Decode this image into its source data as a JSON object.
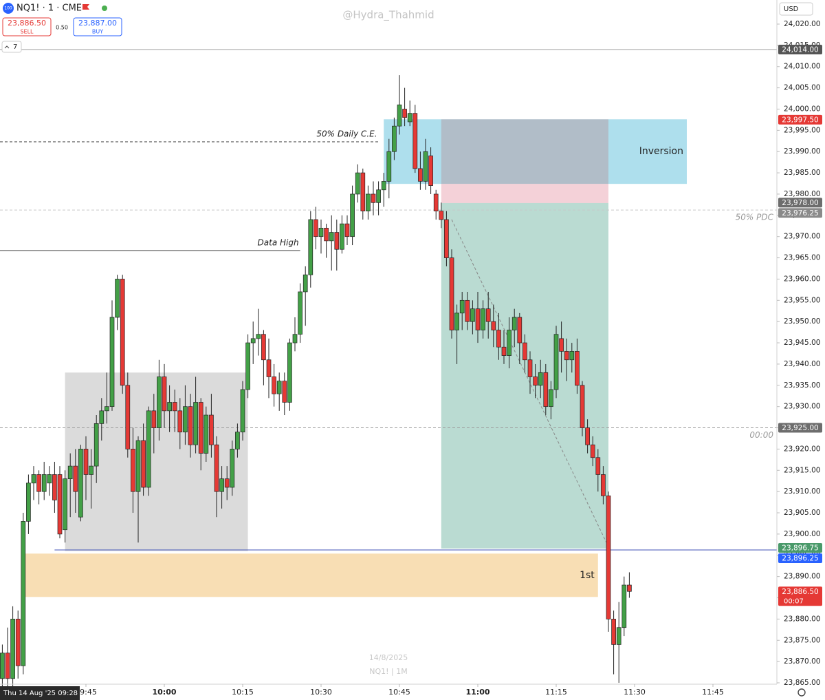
{
  "header": {
    "icon": "100",
    "symbol": "NQ1! · 1 · CME",
    "sell_price": "23,886.50",
    "sell_label": "SELL",
    "spread": "0.50",
    "buy_price": "23,887.00",
    "buy_label": "BUY",
    "interval_count": "7",
    "watermark": "@Hydra_Thahmid",
    "currency": "USD"
  },
  "chart_data": {
    "type": "candlestick",
    "center_date": "14/8/2025",
    "center_symbol": "NQ1! | 1M",
    "crosshair_label": "Thu 14 Aug '25  09:28",
    "up_color": "#43a047",
    "down_color": "#e53935",
    "x": [
      "09:29",
      "09:30",
      "09:31",
      "09:32",
      "09:33",
      "09:34",
      "09:35",
      "09:36",
      "09:37",
      "09:38",
      "09:39",
      "09:40",
      "09:41",
      "09:42",
      "09:43",
      "09:44",
      "09:45",
      "09:46",
      "09:47",
      "09:48",
      "09:49",
      "09:50",
      "09:51",
      "09:52",
      "09:53",
      "09:54",
      "09:55",
      "09:56",
      "09:57",
      "09:58",
      "09:59",
      "10:00",
      "10:01",
      "10:02",
      "10:03",
      "10:04",
      "10:05",
      "10:06",
      "10:07",
      "10:08",
      "10:09",
      "10:10",
      "10:11",
      "10:12",
      "10:13",
      "10:14",
      "10:15",
      "10:16",
      "10:17",
      "10:18",
      "10:19",
      "10:20",
      "10:21",
      "10:22",
      "10:23",
      "10:24",
      "10:25",
      "10:26",
      "10:27",
      "10:28",
      "10:29",
      "10:30",
      "10:31",
      "10:32",
      "10:33",
      "10:34",
      "10:35",
      "10:36",
      "10:37",
      "10:38",
      "10:39",
      "10:40",
      "10:41",
      "10:42",
      "10:43",
      "10:44",
      "10:45",
      "10:46",
      "10:47",
      "10:48",
      "10:49",
      "10:50",
      "10:51",
      "10:52",
      "10:53",
      "10:54",
      "10:55",
      "10:56",
      "10:57",
      "10:58",
      "10:59",
      "11:00",
      "11:01",
      "11:02",
      "11:03",
      "11:04",
      "11:05",
      "11:06",
      "11:07",
      "11:08",
      "11:09",
      "11:10",
      "11:11",
      "11:12",
      "11:13",
      "11:14",
      "11:15",
      "11:16",
      "11:17",
      "11:18",
      "11:19",
      "11:20",
      "11:21",
      "11:22",
      "11:23",
      "11:24",
      "11:25",
      "11:26",
      "11:27",
      "11:28",
      "11:29"
    ],
    "open": [
      23866,
      23872,
      23866,
      23880,
      23869,
      23903,
      23912,
      23914,
      23910,
      23912,
      23914,
      23914,
      23901,
      23913,
      23916,
      23904,
      23920,
      23914,
      23916,
      23926,
      23929,
      23930,
      23951,
      23960,
      23935,
      23920,
      23910,
      23922,
      23911,
      23929,
      23925,
      23937,
      23929,
      23931,
      23929,
      23924,
      23930,
      23921,
      23931,
      23919,
      23928,
      23921,
      23910,
      23913,
      23911,
      23920,
      23924,
      23934,
      23945,
      23946,
      23947,
      23941,
      23937,
      23933,
      23936,
      23931,
      23945,
      23947,
      23957,
      23961,
      23974,
      23970,
      23972,
      23969,
      23971,
      23967,
      23973,
      23970,
      23980,
      23985,
      23976,
      23980,
      23978,
      23981,
      23983,
      23990,
      23996,
      24000,
      23997,
      23999,
      23986,
      23983,
      23989,
      23980,
      23976,
      23974,
      23965,
      23948,
      23952,
      23955,
      23950,
      23953,
      23948,
      23953,
      23950,
      23948,
      23944,
      23942,
      23948,
      23951,
      23945,
      23941,
      23937,
      23935,
      23938,
      23930,
      23934,
      23946,
      23943,
      23941,
      23943,
      23935,
      23925,
      23921,
      23918,
      23914,
      23909,
      23880,
      23874,
      23878,
      23888
    ],
    "high": [
      23874,
      23878,
      23883,
      23882,
      23905,
      23914,
      23916,
      23915,
      23917,
      23916,
      23917,
      23916,
      23915,
      23919,
      23920,
      23921,
      23923,
      23920,
      23928,
      23932,
      23938,
      23955,
      23961,
      23961,
      23938,
      23925,
      23923,
      23926,
      23930,
      23933,
      23941,
      23940,
      23935,
      23934,
      23932,
      23935,
      23933,
      23937,
      23932,
      23930,
      23933,
      23923,
      23916,
      23916,
      23922,
      23926,
      23936,
      23947,
      23950,
      23953,
      23948,
      23946,
      23940,
      23938,
      23938,
      23946,
      23951,
      23959,
      23963,
      23976,
      23977,
      23974,
      23973,
      23975,
      23974,
      23975,
      23975,
      23982,
      23987,
      23986,
      23982,
      23983,
      23983,
      23985,
      23993,
      23998,
      24008,
      24005,
      24002,
      24001,
      23990,
      23993,
      23991,
      23981,
      23978,
      23976,
      23967,
      23954,
      23957,
      23957,
      23955,
      23957,
      23955,
      23957,
      23954,
      23952,
      23948,
      23951,
      23953,
      23952,
      23947,
      23943,
      23940,
      23941,
      23940,
      23936,
      23949,
      23950,
      23946,
      23945,
      23946,
      23936,
      23927,
      23923,
      23920,
      23916,
      23910,
      23882,
      23884,
      23890,
      23891
    ],
    "low": [
      23863,
      23862,
      23864,
      23866,
      23867,
      23900,
      23908,
      23907,
      23908,
      23909,
      23905,
      23899,
      23898,
      23904,
      23905,
      23903,
      23908,
      23906,
      23912,
      23922,
      23926,
      23929,
      23948,
      23933,
      23918,
      23905,
      23898,
      23909,
      23909,
      23919,
      23922,
      23925,
      23924,
      23924,
      23920,
      23921,
      23918,
      23919,
      23915,
      23917,
      23918,
      23904,
      23906,
      23908,
      23909,
      23918,
      23922,
      23932,
      23940,
      23942,
      23935,
      23932,
      23930,
      23929,
      23928,
      23929,
      23943,
      23945,
      23949,
      23958,
      23967,
      23966,
      23965,
      23962,
      23962,
      23966,
      23968,
      23968,
      23978,
      23974,
      23974,
      23975,
      23975,
      23977,
      23979,
      23988,
      23994,
      23996,
      23996,
      23985,
      23981,
      23981,
      23980,
      23974,
      23972,
      23963,
      23946,
      23940,
      23948,
      23948,
      23947,
      23945,
      23946,
      23946,
      23944,
      23941,
      23940,
      23939,
      23944,
      23940,
      23938,
      23933,
      23932,
      23932,
      23928,
      23927,
      23932,
      23938,
      23936,
      23938,
      23933,
      23923,
      23919,
      23916,
      23910,
      23907,
      23877,
      23867,
      23865,
      23876,
      23885
    ],
    "close": [
      23872,
      23866,
      23880,
      23869,
      23903,
      23912,
      23914,
      23910,
      23914,
      23914,
      23908,
      23900,
      23913,
      23916,
      23910,
      23920,
      23914,
      23916,
      23926,
      23929,
      23930,
      23951,
      23960,
      23935,
      23920,
      23910,
      23922,
      23911,
      23929,
      23925,
      23937,
      23929,
      23931,
      23929,
      23924,
      23930,
      23921,
      23931,
      23919,
      23928,
      23921,
      23910,
      23913,
      23911,
      23920,
      23924,
      23934,
      23945,
      23946,
      23947,
      23941,
      23937,
      23933,
      23936,
      23931,
      23945,
      23947,
      23957,
      23961,
      23974,
      23970,
      23972,
      23969,
      23971,
      23967,
      23973,
      23970,
      23980,
      23985,
      23976,
      23980,
      23978,
      23981,
      23983,
      23990,
      23996,
      24001,
      23998,
      23999,
      23986,
      23983,
      23990,
      23982,
      23976,
      23974,
      23965,
      23948,
      23952,
      23955,
      23950,
      23953,
      23948,
      23953,
      23950,
      23948,
      23944,
      23942,
      23948,
      23951,
      23945,
      23941,
      23937,
      23935,
      23938,
      23930,
      23934,
      23947,
      23943,
      23941,
      23943,
      23935,
      23925,
      23921,
      23918,
      23914,
      23909,
      23880,
      23874,
      23878,
      23888,
      23886.5
    ],
    "ylim": [
      23863.5,
      24025.7
    ],
    "yticks": [
      {
        "value": 24020,
        "label": "24,020.00"
      },
      {
        "value": 24015,
        "label": "24,015.00"
      },
      {
        "value": 24010,
        "label": "24,010.00"
      },
      {
        "value": 24005,
        "label": "24,005.00"
      },
      {
        "value": 24000,
        "label": "24,000.00"
      },
      {
        "value": 23995,
        "label": "23,995.00"
      },
      {
        "value": 23990,
        "label": "23,990.00"
      },
      {
        "value": 23985,
        "label": "23,985.00"
      },
      {
        "value": 23980,
        "label": "23,980.00"
      },
      {
        "value": 23975,
        "label": "23,975.00"
      },
      {
        "value": 23970,
        "label": "23,970.00"
      },
      {
        "value": 23965,
        "label": "23,965.00"
      },
      {
        "value": 23960,
        "label": "23,960.00"
      },
      {
        "value": 23955,
        "label": "23,955.00"
      },
      {
        "value": 23950,
        "label": "23,950.00"
      },
      {
        "value": 23945,
        "label": "23,945.00"
      },
      {
        "value": 23940,
        "label": "23,940.00"
      },
      {
        "value": 23935,
        "label": "23,935.00"
      },
      {
        "value": 23930,
        "label": "23,930.00"
      },
      {
        "value": 23925,
        "label": "23,925.00"
      },
      {
        "value": 23920,
        "label": "23,920.00"
      },
      {
        "value": 23915,
        "label": "23,915.00"
      },
      {
        "value": 23910,
        "label": "23,910.00"
      },
      {
        "value": 23905,
        "label": "23,905.00"
      },
      {
        "value": 23900,
        "label": "23,900.00"
      },
      {
        "value": 23895,
        "label": "23,895.00"
      },
      {
        "value": 23890,
        "label": "23,890.00"
      },
      {
        "value": 23885,
        "label": "23,885.00"
      },
      {
        "value": 23880,
        "label": "23,880.00"
      },
      {
        "value": 23875,
        "label": "23,875.00"
      },
      {
        "value": 23870,
        "label": "23,870.00"
      },
      {
        "value": 23865,
        "label": "23,865.00"
      }
    ],
    "xticks": [
      "09:45",
      "10:00",
      "10:15",
      "10:30",
      "10:45",
      "11:00",
      "11:15",
      "11:30",
      "11:45"
    ],
    "bold_xticks": [
      "10:00",
      "11:00"
    ],
    "zones": [
      {
        "start": "09:41",
        "end": "10:16",
        "top": 23938,
        "bottom": 23896,
        "color": "rgba(200,200,200,0.65)"
      },
      {
        "start": "09:33",
        "end": "11:23",
        "top": 23895.4,
        "bottom": 23885.2,
        "color": "rgba(245,205,140,0.65)",
        "text": "1st"
      },
      {
        "start": "10:42",
        "end": "11:40",
        "top": 23997.6,
        "bottom": 23982.4,
        "color": "rgba(140,210,230,0.7)",
        "text": "Inversion"
      },
      {
        "start": "10:53",
        "end": "11:25",
        "top": 23997.6,
        "bottom": 23982.4,
        "color": "rgba(180,160,170,0.55)"
      },
      {
        "start": "10:53",
        "end": "11:25",
        "top": 23982.4,
        "bottom": 23977.9,
        "color": "rgba(240,190,200,0.7)"
      },
      {
        "start": "10:53",
        "end": "11:25",
        "top": 23977.9,
        "bottom": 23896.6,
        "color": "rgba(140,195,180,0.6)"
      }
    ],
    "trend_line": {
      "x": [
        "10:55",
        "11:25"
      ],
      "y": [
        23974,
        23897
      ],
      "color": "#888888"
    },
    "levels": [
      {
        "value": 24014,
        "color": "#9e9e9e"
      },
      {
        "value": 23992.3,
        "color": "#333333",
        "dashed": true,
        "end": "10:41",
        "text": "50% Daily C.E."
      },
      {
        "value": 23966.7,
        "color": "#333333",
        "end": "10:26",
        "text": "Data High"
      },
      {
        "value": 23976.25,
        "color": "#c8c8c8",
        "dashed": true,
        "text": "50% PDC"
      },
      {
        "value": 23925,
        "color": "#9e9e9e",
        "dashed": true,
        "text": "00:00"
      },
      {
        "value": 23896.25,
        "color": "#3f51b5",
        "start": "09:39"
      }
    ],
    "price_badges": [
      {
        "value": 24014,
        "label": "24,014.00",
        "color": "#555555"
      },
      {
        "value": 23997.5,
        "label": "23,997.50",
        "color": "#e53935"
      },
      {
        "value": 23978,
        "label": "23,978.00",
        "color": "#6d6d6d"
      },
      {
        "value": 23976.25,
        "label": "23,976.25",
        "color": "#8a8a8a"
      },
      {
        "value": 23925,
        "label": "23,925.00",
        "color": "#6d6d6d"
      },
      {
        "value": 23896.75,
        "label": "23,896.75",
        "color": "#4a9a6a"
      },
      {
        "value": 23896.25,
        "label": "23,896.25",
        "color": "#2962ff"
      },
      {
        "value": 23886.5,
        "label": "23,886.50",
        "sub": "00:07",
        "color": "#e53935"
      }
    ]
  }
}
